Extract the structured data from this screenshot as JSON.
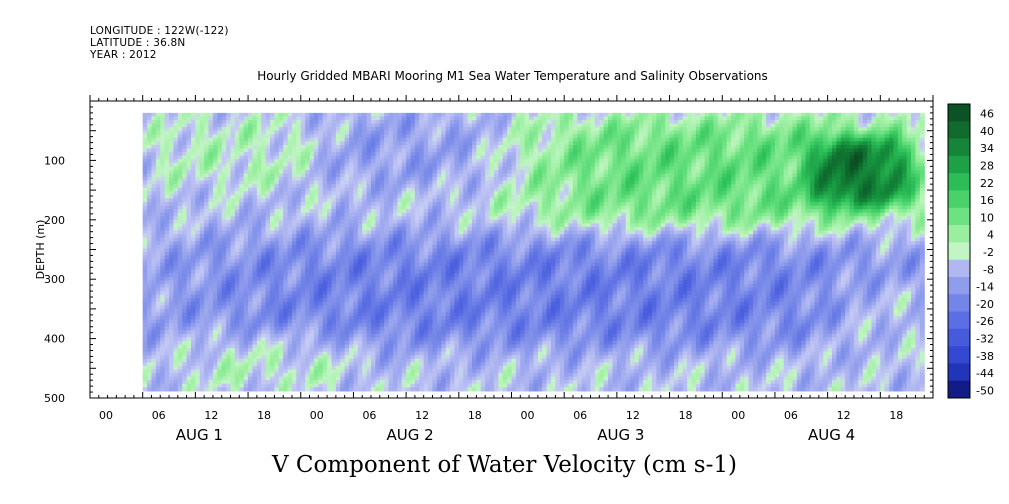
{
  "header": {
    "longitude": "LONGITUDE : 122W(-122)",
    "latitude": "LATITUDE : 36.8N",
    "year": "YEAR : 2012"
  },
  "chart_data": {
    "type": "heatmap",
    "title": "Hourly Gridded MBARI Mooring M1 Sea Water Temperature and Salinity Observations",
    "variable_label": "V Component of Water Velocity (cm s-1)",
    "ylabel": "DEPTH (m)",
    "ylim": [
      500,
      0
    ],
    "y_ticks": [
      100,
      200,
      300,
      400,
      500
    ],
    "x_hour_ticks": [
      "00",
      "06",
      "12",
      "18",
      "00",
      "06",
      "12",
      "18",
      "00",
      "06",
      "12",
      "18",
      "00",
      "06",
      "12",
      "18"
    ],
    "x_day_labels": [
      "AUG 1",
      "AUG 2",
      "AUG 3",
      "AUG 4"
    ],
    "x_range_hours": [
      0,
      96
    ],
    "data_start_hour": 6,
    "data_depth_range": [
      20,
      485
    ],
    "colorbar_levels": [
      46,
      40,
      34,
      28,
      22,
      16,
      10,
      4,
      -2,
      -8,
      -14,
      -20,
      -26,
      -32,
      -38,
      -44,
      -50
    ],
    "colorbar_range": [
      -50,
      50
    ],
    "colors": {
      "positive_light": "#a8f2a8",
      "positive_mid": "#5ee07a",
      "positive_dark": "#1e9e46",
      "positive_darkest": "#0a5a25",
      "negative_light": "#b9bff2",
      "negative_mid": "#8f9cec",
      "negative_dark": "#4f63e0",
      "negative_darkest": "#0a1280"
    },
    "pattern_description_regions": [
      {
        "hours": [
          6,
          26
        ],
        "depth": [
          20,
          150
        ],
        "v": 6
      },
      {
        "hours": [
          26,
          48
        ],
        "depth": [
          20,
          150
        ],
        "v": -6
      },
      {
        "hours": [
          48,
          96
        ],
        "depth": [
          20,
          220
        ],
        "v": 18
      },
      {
        "hours": [
          82,
          94
        ],
        "depth": [
          60,
          180
        ],
        "v": 30
      },
      {
        "hours": [
          6,
          96
        ],
        "depth": [
          220,
          420
        ],
        "v": -14
      },
      {
        "hours": [
          10,
          30
        ],
        "depth": [
          380,
          485
        ],
        "v": 6
      },
      {
        "hours": [
          84,
          96
        ],
        "depth": [
          300,
          420
        ],
        "v": 6
      }
    ]
  }
}
